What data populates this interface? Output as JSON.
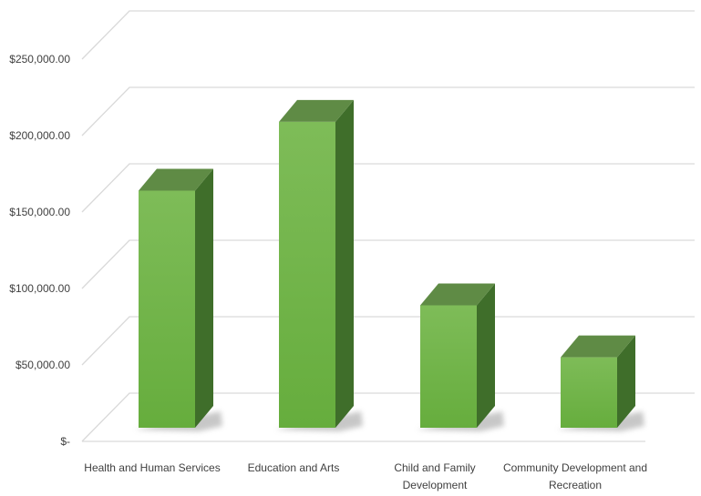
{
  "chart_data": {
    "type": "bar",
    "title": "",
    "xlabel": "",
    "ylabel": "",
    "categories": [
      "Health and Human Services",
      "Education and Arts",
      "Child and Family Development",
      "Community Development and Recreation"
    ],
    "category_label_lines": [
      [
        "Health and Human Services"
      ],
      [
        "Education and Arts"
      ],
      [
        "Child and Family",
        "Development"
      ],
      [
        "Community Development and",
        "Recreation"
      ]
    ],
    "values": [
      164000,
      209000,
      89000,
      55000
    ],
    "ylim": [
      0,
      275000
    ],
    "yticks": [
      0,
      50000,
      100000,
      150000,
      200000,
      250000
    ],
    "ytick_labels": [
      "$-",
      "$50,000.00",
      "$100,000.00",
      "$150,000.00",
      "$200,000.00",
      "$250,000.00"
    ],
    "grid": true,
    "legend": "none",
    "three_d": true
  },
  "colors": {
    "bar_front_top": "#7ebc58",
    "bar_front_bottom": "#66ad3d",
    "bar_top": "#5f8b45",
    "bar_side": "#3f6e2a",
    "shadow": "#9a9a9a",
    "grid": "#d9d9d9",
    "text": "#404040"
  }
}
